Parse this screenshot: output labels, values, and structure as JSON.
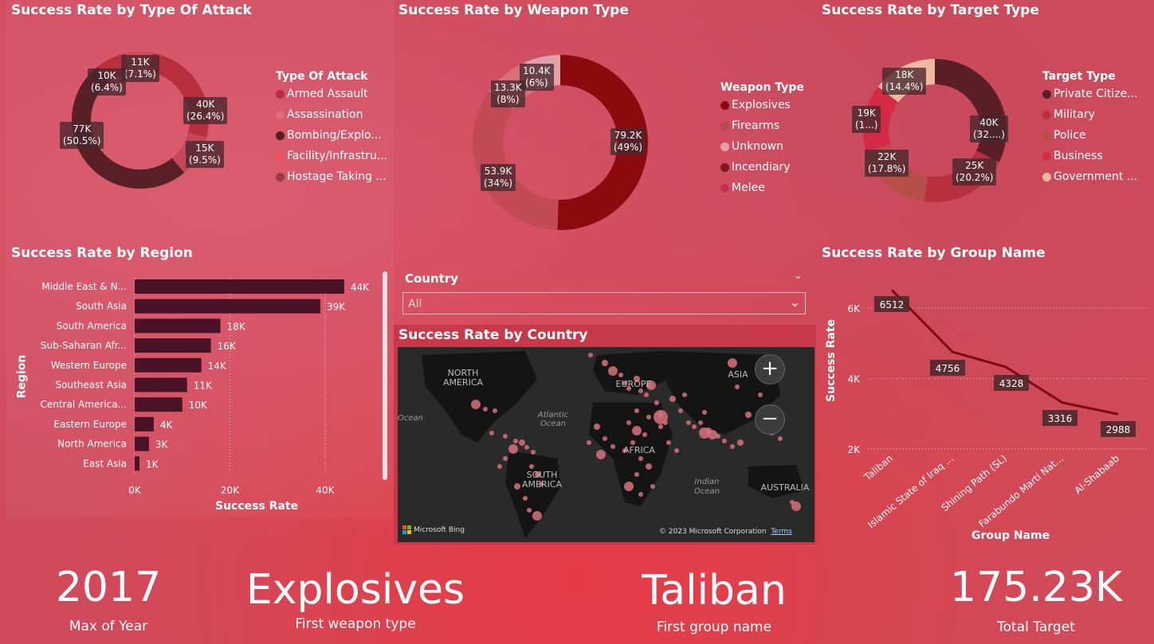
{
  "attack": {
    "title": "Success Rate by Type Of Attack",
    "legend_title": "Type Of Attack",
    "legend": [
      "Armed Assault",
      "Assassination",
      "Bombing/Explo...",
      "Facility/Infrastru...",
      "Hostage Taking ..."
    ],
    "labels": [
      {
        "a": "11K",
        "b": "(7.1%)"
      },
      {
        "a": "10K",
        "b": "(6.4%)"
      },
      {
        "a": "40K",
        "b": "(26.4%)"
      },
      {
        "a": "15K",
        "b": "(9.5%)"
      },
      {
        "a": "77K",
        "b": "(50.5%)"
      }
    ]
  },
  "weapon": {
    "title": "Success Rate by Weapon Type",
    "legend_title": "Weapon Type",
    "legend": [
      "Explosives",
      "Firearms",
      "Unknown",
      "Incendiary",
      "Melee"
    ],
    "labels": [
      {
        "a": "10.4K",
        "b": "(6%)"
      },
      {
        "a": "13.3K",
        "b": "(8%)"
      },
      {
        "a": "79.2K",
        "b": "(49%)"
      },
      {
        "a": "53.9K",
        "b": "(34%)"
      }
    ]
  },
  "target": {
    "title": "Success Rate by Target Type",
    "legend_title": "Target Type",
    "legend": [
      "Private Citize...",
      "Military",
      "Police",
      "Business",
      "Government ..."
    ],
    "labels": [
      {
        "a": "18K",
        "b": "(14.4%)"
      },
      {
        "a": "19K",
        "b": "(1...)"
      },
      {
        "a": "40K",
        "b": "(32....)"
      },
      {
        "a": "22K",
        "b": "(17.8%)"
      },
      {
        "a": "25K",
        "b": "(20.2%)"
      }
    ]
  },
  "region": {
    "title": "Success Rate by Region",
    "ylabel": "Region",
    "xlabel": "Success Rate",
    "xticks": [
      "0K",
      "20K",
      "40K"
    ]
  },
  "slicer": {
    "label": "Country",
    "value": "All"
  },
  "map": {
    "title": "Success Rate by Country",
    "continents": [
      "NORTH\nAMERICA",
      "EUROPE",
      "ASIA",
      "AFRICA",
      "SOUTH\nAMERICA",
      "AUSTRALIA"
    ],
    "oceans": [
      "Atlantic\nOcean",
      "Indian\nOcean",
      "Ocean"
    ],
    "zoom_in": "+",
    "zoom_out": "−",
    "bing": "Microsoft Bing",
    "copyright": "© 2023 Microsoft Corporation",
    "terms": "Terms"
  },
  "group": {
    "title": "Success Rate by Group Name",
    "ylabel": "Success Rate",
    "xlabel": "Group Name",
    "yticks": [
      "6K",
      "4K",
      "2K"
    ]
  },
  "kpis": [
    {
      "value": "2017",
      "label": "Max of Year"
    },
    {
      "value": "Explosives",
      "label": "First weapon type"
    },
    {
      "value": "Taliban",
      "label": "First group name"
    },
    {
      "value": "175.23K",
      "label": "Total Target"
    }
  ],
  "colors": {
    "dark_maroon": "#5a1f26",
    "bar": "#4a1226",
    "explosives": "#8b0a0d",
    "accent_red": "#cf3b4e"
  },
  "chart_data": [
    {
      "type": "pie",
      "title": "Success Rate by Type Of Attack",
      "categories": [
        "Bombing/Explosion",
        "Armed Assault",
        "Facility/Infrastructure",
        "Hostage Taking",
        "Assassination"
      ],
      "values": [
        77000,
        40000,
        15000,
        11000,
        10000
      ]
    },
    {
      "type": "pie",
      "title": "Success Rate by Weapon Type",
      "categories": [
        "Explosives",
        "Firearms",
        "Unknown",
        "Incendiary"
      ],
      "values": [
        79200,
        53900,
        13300,
        10400
      ]
    },
    {
      "type": "pie",
      "title": "Success Rate by Target Type",
      "categories": [
        "Private Citizens",
        "Military",
        "Police",
        "Business",
        "Government"
      ],
      "values": [
        40000,
        25000,
        22000,
        19000,
        18000
      ]
    },
    {
      "type": "bar",
      "title": "Success Rate by Region",
      "xlabel": "Success Rate",
      "ylabel": "Region",
      "categories": [
        "Middle East & N...",
        "South Asia",
        "South America",
        "Sub-Saharan Afr...",
        "Western Europe",
        "Southeast Asia",
        "Central America...",
        "Eastern Europe",
        "North America",
        "East Asia"
      ],
      "values": [
        44000,
        39000,
        18000,
        16000,
        14000,
        11000,
        10000,
        4000,
        3000,
        1000
      ],
      "labels": [
        "44K",
        "39K",
        "18K",
        "16K",
        "14K",
        "11K",
        "10K",
        "4K",
        "3K",
        "1K"
      ],
      "xlim": [
        0,
        50000
      ]
    },
    {
      "type": "line",
      "title": "Success Rate by Group Name",
      "xlabel": "Group Name",
      "ylabel": "Success Rate",
      "categories": [
        "Taliban",
        "Islamic State of Iraq ...",
        "Shining Path (SL)",
        "Farabundo Marti Nat...",
        "Al-Shabaab"
      ],
      "values": [
        6512,
        4756,
        4328,
        3316,
        2988
      ],
      "ylim": [
        2000,
        6600
      ]
    }
  ]
}
